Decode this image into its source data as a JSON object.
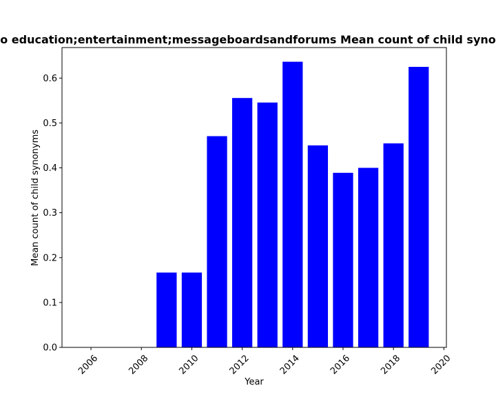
{
  "chart_data": {
    "type": "bar",
    "title": "o education;entertainment;messageboardsandforums Mean count of child syno",
    "xlabel": "Year",
    "ylabel": "Mean count of child synonyms",
    "bar_color": "#0000ff",
    "x": [
      2009,
      2010,
      2011,
      2012,
      2013,
      2014,
      2015,
      2016,
      2017,
      2018,
      2019
    ],
    "values": [
      0.1667,
      0.1667,
      0.4706,
      0.5556,
      0.5455,
      0.6364,
      0.45,
      0.3889,
      0.4,
      0.4545,
      0.625
    ],
    "bar_width": 0.8,
    "xlim": [
      2004.85,
      2020.1
    ],
    "ylim": [
      0,
      0.668
    ],
    "xticks": [
      2006,
      2008,
      2010,
      2012,
      2014,
      2016,
      2018,
      2020
    ],
    "yticks": [
      0.0,
      0.1,
      0.2,
      0.3,
      0.4,
      0.5,
      0.6
    ],
    "ytick_labels": [
      "0.0",
      "0.1",
      "0.2",
      "0.3",
      "0.4",
      "0.5",
      "0.6"
    ],
    "xtick_rotation": 45,
    "grid": false,
    "legend": "none"
  }
}
